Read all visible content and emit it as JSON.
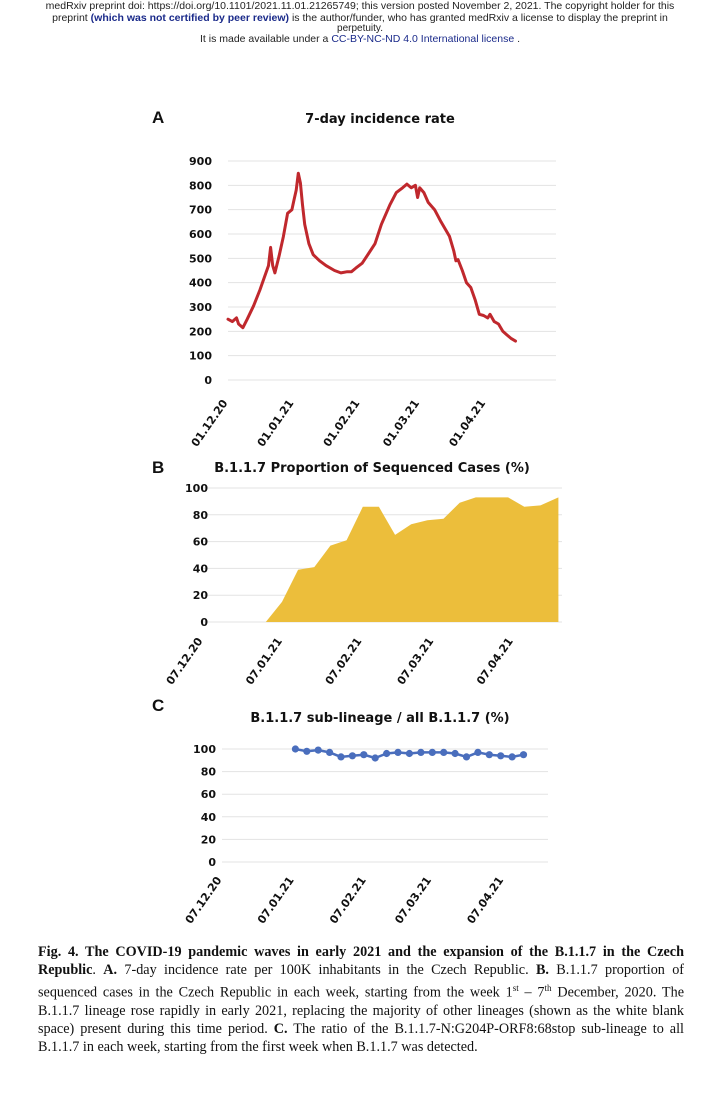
{
  "header": {
    "line1": "medRxiv preprint doi: https://doi.org/10.1101/2021.11.01.21265749; this version posted November 2, 2021. The copyright holder for this",
    "line2_pre": "preprint ",
    "line2_bold": "(which was not certified by peer review)",
    "line2_post": " is the author/funder, who has granted medRxiv a license to display the preprint in",
    "line3": "perpetuity.",
    "line4_pre": "It is made available under a ",
    "line4_license": "CC-BY-NC-ND 4.0 International license",
    "line4_post": " ."
  },
  "panels": {
    "a": "A",
    "b": "B",
    "c": "C"
  },
  "chart_data": [
    {
      "type": "line",
      "title": "7-day incidence rate",
      "ylim": [
        0,
        900
      ],
      "yticks": [
        "900",
        "800",
        "700",
        "600",
        "500",
        "400",
        "300",
        "200",
        "100",
        "0"
      ],
      "xtick_labels": [
        "01.12.20",
        "01.01.21",
        "01.02.21",
        "01.03.21",
        "01.04.21"
      ],
      "x_domain": [
        0,
        154
      ],
      "xtick_positions": [
        0,
        31,
        62,
        90,
        121
      ],
      "grid": true,
      "color": "#c0282d",
      "points": [
        [
          0,
          250
        ],
        [
          2,
          240
        ],
        [
          4,
          255
        ],
        [
          5,
          230
        ],
        [
          7,
          215
        ],
        [
          9,
          250
        ],
        [
          12,
          305
        ],
        [
          15,
          370
        ],
        [
          17,
          420
        ],
        [
          19,
          470
        ],
        [
          20,
          545
        ],
        [
          21,
          470
        ],
        [
          22,
          440
        ],
        [
          24,
          510
        ],
        [
          26,
          590
        ],
        [
          28,
          685
        ],
        [
          30,
          700
        ],
        [
          31,
          740
        ],
        [
          32,
          780
        ],
        [
          33,
          850
        ],
        [
          34,
          810
        ],
        [
          35,
          720
        ],
        [
          36,
          640
        ],
        [
          38,
          560
        ],
        [
          40,
          515
        ],
        [
          43,
          490
        ],
        [
          46,
          470
        ],
        [
          50,
          450
        ],
        [
          53,
          440
        ],
        [
          56,
          445
        ],
        [
          58,
          445
        ],
        [
          60,
          460
        ],
        [
          63,
          480
        ],
        [
          66,
          520
        ],
        [
          69,
          560
        ],
        [
          72,
          640
        ],
        [
          76,
          720
        ],
        [
          79,
          770
        ],
        [
          82,
          790
        ],
        [
          84,
          805
        ],
        [
          86,
          790
        ],
        [
          88,
          800
        ],
        [
          89,
          750
        ],
        [
          90,
          790
        ],
        [
          92,
          770
        ],
        [
          94,
          730
        ],
        [
          97,
          700
        ],
        [
          100,
          650
        ],
        [
          104,
          590
        ],
        [
          106,
          530
        ],
        [
          107,
          490
        ],
        [
          108,
          495
        ],
        [
          110,
          450
        ],
        [
          112,
          400
        ],
        [
          114,
          380
        ],
        [
          116,
          330
        ],
        [
          118,
          270
        ],
        [
          120,
          265
        ],
        [
          122,
          255
        ],
        [
          123,
          270
        ],
        [
          125,
          240
        ],
        [
          127,
          230
        ],
        [
          129,
          200
        ],
        [
          131,
          185
        ],
        [
          133,
          170
        ],
        [
          135,
          160
        ]
      ]
    },
    {
      "type": "area",
      "title": "B.1.1.7 Proportion of Sequenced Cases (%)",
      "ylim": [
        0,
        100
      ],
      "yticks": [
        "100",
        "80",
        "60",
        "40",
        "20",
        "0"
      ],
      "xtick_labels": [
        "07.12.20",
        "07.01.21",
        "07.02.21",
        "07.03.21",
        "07.04.21"
      ],
      "x_domain": [
        0,
        20
      ],
      "xtick_positions": [
        0,
        4.43,
        8.86,
        12.86,
        17.29
      ],
      "grid": true,
      "color": "#ecbe3b",
      "points": [
        [
          3.5,
          0
        ],
        [
          4.4,
          15
        ],
        [
          5.3,
          39
        ],
        [
          6.2,
          41
        ],
        [
          7.1,
          57
        ],
        [
          8.0,
          61
        ],
        [
          8.9,
          86
        ],
        [
          9.8,
          86
        ],
        [
          10.7,
          65
        ],
        [
          11.6,
          73
        ],
        [
          12.5,
          76
        ],
        [
          13.4,
          77
        ],
        [
          14.3,
          89
        ],
        [
          15.2,
          93
        ],
        [
          16.1,
          93
        ],
        [
          17.0,
          93
        ],
        [
          17.9,
          86
        ],
        [
          18.8,
          87
        ],
        [
          19.8,
          93
        ]
      ]
    },
    {
      "type": "line",
      "title": "B.1.1.7 sub-lineage / all B.1.1.7 (%)",
      "ylim": [
        0,
        100
      ],
      "yticks": [
        "100",
        "80",
        "60",
        "40",
        "20",
        "0"
      ],
      "xtick_labels": [
        "07.12.20",
        "07.01.21",
        "07.02.21",
        "07.03.21",
        "07.04.21"
      ],
      "x_domain": [
        0,
        20
      ],
      "xtick_positions": [
        0,
        4.43,
        8.86,
        12.86,
        17.29
      ],
      "grid": true,
      "markers": true,
      "color": "#4a6ebd",
      "points": [
        [
          4.5,
          100
        ],
        [
          5.2,
          98
        ],
        [
          5.9,
          99
        ],
        [
          6.6,
          97
        ],
        [
          7.3,
          93
        ],
        [
          8.0,
          94
        ],
        [
          8.7,
          95
        ],
        [
          9.4,
          92
        ],
        [
          10.1,
          96
        ],
        [
          10.8,
          97
        ],
        [
          11.5,
          96
        ],
        [
          12.2,
          97
        ],
        [
          12.9,
          97
        ],
        [
          13.6,
          97
        ],
        [
          14.3,
          96
        ],
        [
          15.0,
          93
        ],
        [
          15.7,
          97
        ],
        [
          16.4,
          95
        ],
        [
          17.1,
          94
        ],
        [
          17.8,
          93
        ],
        [
          18.5,
          95
        ]
      ]
    }
  ],
  "caption": {
    "fig": "Fig. 4. The COVID-19 pandemic waves in early 2021 and the expansion of the B.1.1.7 in the Czech Republic",
    "a_label": "A.",
    "a_text": " 7-day incidence rate per 100K inhabitants in the Czech Republic. ",
    "b_label": "B.",
    "b_text1": " B.1.1.7 proportion of sequenced cases in the Czech Republic in each week, starting from the week 1",
    "b_sup1": "st",
    "b_text2": " – 7",
    "b_sup2": "th",
    "b_text3": " December, 2020. The B.1.1.7 lineage rose rapidly in early 2021, replacing the majority of other lineages (shown as the white blank space) present during this time period. ",
    "c_label": "C.",
    "c_text": " The ratio of the B.1.1.7-N:G204P-ORF8:68stop sub-lineage to all B.1.1.7 in each week, starting from the first week when B.1.1.7 was detected."
  }
}
